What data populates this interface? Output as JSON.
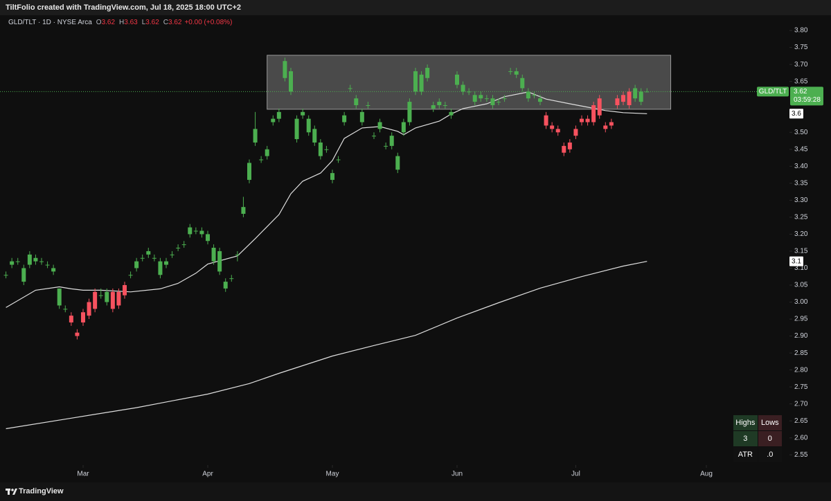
{
  "header": {
    "text": "TiltFolio created with TradingView.com, Jul 18, 2025 18:00 UTC+2"
  },
  "chart_data": {
    "type": "candlestick",
    "symbol": "GLD/TLT · 1D · NYSE Arca",
    "legend": [
      {
        "label": "O",
        "value": 3.62
      },
      {
        "label": "H",
        "value": 3.63
      },
      {
        "label": "L",
        "value": 3.62
      },
      {
        "label": "C",
        "value": 3.62
      }
    ],
    "change": "+0.00 (+0.08%)",
    "up_color": "#4caf50",
    "down_color": "#f7525f",
    "open": [
      3.08,
      3.11,
      3.12,
      3.06,
      3.11,
      3.12,
      3.12,
      3.11,
      3.09,
      2.99,
      2.98,
      2.96,
      2.91,
      2.97,
      3.0,
      3.03,
      3.02,
      3.0,
      3.03,
      3.03,
      3.05,
      3.08,
      3.1,
      3.13,
      3.14,
      3.13,
      3.08,
      3.11,
      3.14,
      3.16,
      3.17,
      3.2,
      3.21,
      3.2,
      3.18,
      3.12,
      3.09,
      3.04,
      3.07,
      3.14,
      3.26,
      3.36,
      3.47,
      3.42,
      3.43,
      3.53,
      3.54,
      3.66,
      3.62,
      3.48,
      3.55,
      3.5,
      3.47,
      3.43,
      3.45,
      3.36,
      3.42,
      3.53,
      3.63,
      3.58,
      3.53,
      3.58,
      3.49,
      3.51,
      3.46,
      3.46,
      3.39,
      3.5,
      3.53,
      3.62,
      3.62,
      3.66,
      3.57,
      3.58,
      3.58,
      3.55,
      3.64,
      3.62,
      3.62,
      3.59,
      3.6,
      3.6,
      3.58,
      3.59,
      3.6,
      3.68,
      3.67,
      3.63,
      3.6,
      3.61,
      3.59,
      3.55,
      3.52,
      3.51,
      3.46,
      3.47,
      3.51,
      3.54,
      3.54,
      3.58,
      3.6,
      3.52,
      3.53,
      3.6,
      3.61,
      3.62,
      3.6,
      3.59,
      3.62
    ],
    "high": [
      3.09,
      3.13,
      3.13,
      3.11,
      3.15,
      3.14,
      3.13,
      3.12,
      3.11,
      3.04,
      2.99,
      2.97,
      2.92,
      2.98,
      3.01,
      3.04,
      3.04,
      3.04,
      3.04,
      3.04,
      3.06,
      3.09,
      3.13,
      3.14,
      3.16,
      3.14,
      3.13,
      3.13,
      3.15,
      3.17,
      3.18,
      3.23,
      3.22,
      3.22,
      3.21,
      3.17,
      3.16,
      3.07,
      3.08,
      3.15,
      3.31,
      3.42,
      3.56,
      3.43,
      3.46,
      3.55,
      3.57,
      3.72,
      3.69,
      3.55,
      3.57,
      3.55,
      3.52,
      3.48,
      3.46,
      3.39,
      3.43,
      3.56,
      3.64,
      3.61,
      3.57,
      3.59,
      3.5,
      3.54,
      3.47,
      3.5,
      3.44,
      3.54,
      3.6,
      3.69,
      3.68,
      3.7,
      3.59,
      3.6,
      3.59,
      3.57,
      3.68,
      3.65,
      3.63,
      3.62,
      3.62,
      3.61,
      3.61,
      3.6,
      3.61,
      3.69,
      3.69,
      3.67,
      3.63,
      3.62,
      3.61,
      3.56,
      3.53,
      3.52,
      3.47,
      3.48,
      3.52,
      3.55,
      3.55,
      3.59,
      3.61,
      3.53,
      3.54,
      3.61,
      3.62,
      3.63,
      3.64,
      3.63,
      3.63
    ],
    "low": [
      3.07,
      3.1,
      3.11,
      3.05,
      3.1,
      3.11,
      3.11,
      3.1,
      3.08,
      2.98,
      2.97,
      2.93,
      2.89,
      2.93,
      2.95,
      2.97,
      3.01,
      2.99,
      2.97,
      2.98,
      3.01,
      3.07,
      3.09,
      3.12,
      3.13,
      3.12,
      3.07,
      3.1,
      3.13,
      3.15,
      3.16,
      3.19,
      3.2,
      3.19,
      3.17,
      3.11,
      3.08,
      3.03,
      3.06,
      3.12,
      3.25,
      3.35,
      3.46,
      3.41,
      3.42,
      3.52,
      3.53,
      3.65,
      3.61,
      3.47,
      3.54,
      3.49,
      3.46,
      3.42,
      3.44,
      3.35,
      3.41,
      3.52,
      3.62,
      3.57,
      3.52,
      3.57,
      3.48,
      3.5,
      3.45,
      3.45,
      3.38,
      3.49,
      3.52,
      3.61,
      3.61,
      3.65,
      3.56,
      3.57,
      3.57,
      3.54,
      3.63,
      3.61,
      3.61,
      3.58,
      3.59,
      3.59,
      3.57,
      3.58,
      3.59,
      3.67,
      3.66,
      3.62,
      3.59,
      3.6,
      3.58,
      3.51,
      3.5,
      3.49,
      3.43,
      3.44,
      3.48,
      3.52,
      3.52,
      3.52,
      3.54,
      3.5,
      3.51,
      3.57,
      3.58,
      3.57,
      3.59,
      3.58,
      3.62
    ],
    "close": [
      3.08,
      3.12,
      3.12,
      3.1,
      3.14,
      3.13,
      3.12,
      3.11,
      3.1,
      3.04,
      2.98,
      2.94,
      2.9,
      2.94,
      2.96,
      2.98,
      3.02,
      3.03,
      2.98,
      2.99,
      3.02,
      3.08,
      3.12,
      3.13,
      3.15,
      3.13,
      3.12,
      3.12,
      3.14,
      3.16,
      3.17,
      3.22,
      3.21,
      3.21,
      3.2,
      3.16,
      3.15,
      3.06,
      3.07,
      3.14,
      3.28,
      3.41,
      3.51,
      3.42,
      3.45,
      3.54,
      3.56,
      3.71,
      3.68,
      3.54,
      3.56,
      3.54,
      3.51,
      3.47,
      3.45,
      3.38,
      3.42,
      3.55,
      3.63,
      3.6,
      3.56,
      3.58,
      3.49,
      3.53,
      3.46,
      3.49,
      3.43,
      3.53,
      3.59,
      3.68,
      3.67,
      3.69,
      3.58,
      3.59,
      3.58,
      3.56,
      3.67,
      3.64,
      3.62,
      3.61,
      3.61,
      3.6,
      3.6,
      3.59,
      3.6,
      3.68,
      3.68,
      3.66,
      3.62,
      3.61,
      3.6,
      3.52,
      3.51,
      3.5,
      3.44,
      3.45,
      3.49,
      3.53,
      3.53,
      3.53,
      3.55,
      3.51,
      3.52,
      3.58,
      3.59,
      3.58,
      3.63,
      3.62,
      3.62
    ],
    "xlim": [
      -1,
      132
    ],
    "xticks": [
      {
        "value": 13,
        "label": "Mar"
      },
      {
        "value": 34,
        "label": "Apr"
      },
      {
        "value": 55,
        "label": "May"
      },
      {
        "value": 76,
        "label": "Jun"
      },
      {
        "value": 96,
        "label": "Jul"
      },
      {
        "value": 118,
        "label": "Aug"
      }
    ],
    "ylim": [
      2.52,
      3.845
    ],
    "yticks": [
      {
        "value": 3.8,
        "label": "3.80"
      },
      3.75,
      {
        "value": 3.7,
        "label": "3.70"
      },
      3.65,
      {
        "value": 3.5,
        "label": "3.50"
      },
      3.45,
      {
        "value": 3.4,
        "label": "3.40"
      },
      3.35,
      {
        "value": 3.3,
        "label": "3.30"
      },
      3.25,
      {
        "value": 3.2,
        "label": "3.20"
      },
      3.15,
      {
        "value": 3.1,
        "label": "3.10"
      },
      3.05,
      {
        "value": 3.0,
        "label": "3.00"
      },
      2.95,
      {
        "value": 2.9,
        "label": "2.90"
      },
      2.85,
      {
        "value": 2.8,
        "label": "2.80"
      },
      2.75,
      {
        "value": 2.7,
        "label": "2.70"
      },
      2.65,
      {
        "value": 2.6,
        "label": "2.60"
      },
      2.55
    ],
    "overlays": [
      {
        "color": "#e0e0e0",
        "x": [
          0,
          5,
          9,
          11,
          13,
          16,
          21,
          26,
          29,
          32,
          34,
          39,
          42,
          46,
          48,
          50,
          53,
          55,
          57,
          60,
          63,
          66,
          67,
          69,
          73,
          75,
          77,
          81,
          84,
          88,
          91,
          95,
          98,
          101,
          104,
          108
        ],
        "values": [
          2.984,
          3.035,
          3.045,
          3.039,
          3.035,
          3.035,
          3.03,
          3.039,
          3.055,
          3.085,
          3.112,
          3.136,
          3.187,
          3.258,
          3.319,
          3.356,
          3.38,
          3.417,
          3.482,
          3.513,
          3.517,
          3.503,
          3.493,
          3.513,
          3.533,
          3.554,
          3.57,
          3.584,
          3.605,
          3.619,
          3.598,
          3.584,
          3.574,
          3.564,
          3.558,
          3.555
        ]
      },
      {
        "color": "#e0e0e0",
        "x": [
          0,
          11,
          22,
          34,
          41,
          46,
          55,
          62,
          69,
          76,
          83,
          90,
          97,
          104,
          108
        ],
        "values": [
          2.627,
          2.658,
          2.689,
          2.729,
          2.76,
          2.79,
          2.841,
          2.872,
          2.902,
          2.953,
          2.998,
          3.041,
          3.075,
          3.106,
          3.12
        ]
      }
    ],
    "overlay_labels": [
      {
        "value": 3.555,
        "label": "3.6"
      },
      {
        "value": 3.12,
        "label": "3.1"
      }
    ],
    "zone": {
      "x": [
        44,
        112
      ],
      "y": [
        3.568,
        3.727
      ]
    },
    "last_price": {
      "name": "GLD/TLT",
      "value": 3.62,
      "countdown": "03:59:28",
      "color": "#4caf50"
    }
  },
  "table": {
    "headers": [
      "Highs",
      "Lows"
    ],
    "row": [
      3,
      0
    ],
    "atr_label": "ATR",
    "atr_value": ".0"
  },
  "footer": {
    "brand": "TradingView"
  }
}
